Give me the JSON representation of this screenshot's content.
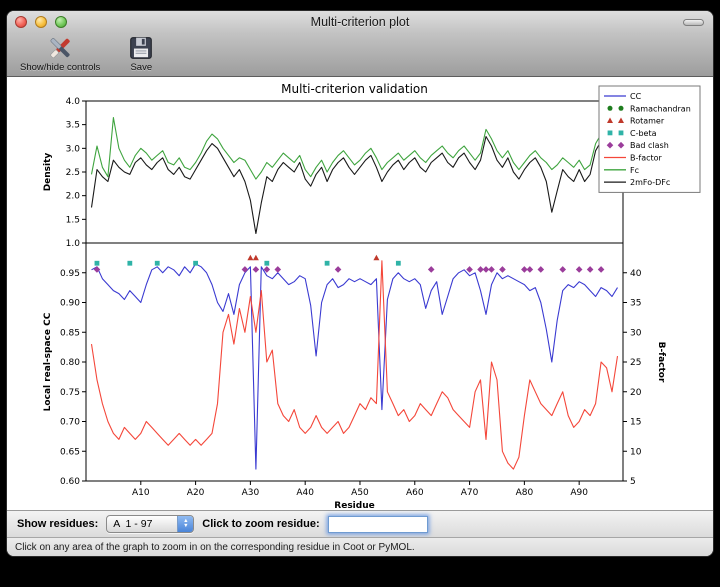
{
  "window": {
    "title": "Multi-criterion plot"
  },
  "toolbar": {
    "buttons": [
      {
        "label": "Show/hide controls",
        "icon": "tools-icon"
      },
      {
        "label": "Save",
        "icon": "floppy-icon"
      }
    ]
  },
  "controls": {
    "show_residues_label": "Show residues:",
    "residue_range_value": "A  1 - 97",
    "zoom_label": "Click to zoom residue:",
    "zoom_input_value": ""
  },
  "status_bar": {
    "text": "Click on any area of the graph to zoom in on the corresponding residue in Coot or PyMOL."
  },
  "chart_data": {
    "type": "line",
    "title": "Multi-criterion validation",
    "xlabel": "Residue",
    "xlim": [
      0,
      98
    ],
    "x_tick_values": [
      10,
      20,
      30,
      40,
      50,
      60,
      70,
      80,
      90
    ],
    "x_tick_labels": [
      "A10",
      "A20",
      "A30",
      "A40",
      "A50",
      "A60",
      "A70",
      "A80",
      "A90"
    ],
    "top_plot": {
      "ylabel": "Density",
      "ylim": [
        1.0,
        4.0
      ],
      "tick_values": [
        1.0,
        1.5,
        2.0,
        2.5,
        3.0,
        3.5,
        4.0
      ],
      "tick_labels": [
        "1.0",
        "1.5",
        "2.0",
        "2.5",
        "3.0",
        "3.5",
        "4.0"
      ],
      "series": [
        {
          "name": "Fc",
          "color": "#3fa43f",
          "values": [
            2.45,
            3.05,
            2.6,
            2.4,
            3.65,
            3.0,
            2.75,
            2.6,
            2.85,
            3.0,
            2.9,
            2.75,
            2.85,
            2.95,
            2.7,
            2.65,
            2.8,
            2.6,
            2.55,
            2.7,
            2.9,
            3.15,
            3.3,
            3.2,
            3.0,
            2.85,
            2.7,
            2.8,
            2.75,
            2.55,
            2.35,
            2.5,
            2.7,
            2.6,
            2.75,
            2.9,
            2.8,
            2.7,
            2.85,
            2.55,
            2.4,
            2.6,
            2.75,
            2.5,
            2.7,
            2.85,
            2.95,
            2.8,
            2.65,
            2.75,
            2.9,
            3.0,
            2.8,
            2.55,
            2.7,
            2.8,
            2.9,
            2.75,
            2.85,
            2.95,
            2.8,
            2.7,
            2.85,
            2.95,
            3.05,
            2.9,
            2.8,
            2.95,
            3.05,
            2.9,
            2.75,
            2.9,
            3.4,
            3.2,
            2.95,
            2.8,
            2.95,
            2.7,
            2.55,
            2.7,
            2.85,
            2.95,
            2.8,
            2.7,
            2.55,
            2.65,
            2.8,
            2.7,
            2.6,
            2.75,
            2.55,
            2.65,
            3.1,
            3.3,
            2.9,
            3.45,
            3.2
          ]
        },
        {
          "name": "2mFo-DFc",
          "color": "#1a1a1a",
          "values": [
            1.75,
            2.55,
            2.4,
            2.3,
            2.75,
            2.6,
            2.5,
            2.45,
            2.7,
            2.8,
            2.65,
            2.55,
            2.7,
            2.8,
            2.55,
            2.45,
            2.6,
            2.4,
            2.35,
            2.55,
            2.75,
            2.95,
            3.1,
            3.0,
            2.8,
            2.6,
            2.4,
            2.55,
            2.3,
            1.9,
            1.2,
            1.85,
            2.4,
            2.3,
            2.55,
            2.7,
            2.6,
            2.5,
            2.7,
            2.35,
            2.2,
            2.45,
            2.6,
            2.3,
            2.55,
            2.7,
            2.8,
            2.6,
            2.45,
            2.6,
            2.75,
            2.85,
            2.6,
            2.3,
            2.5,
            2.65,
            2.75,
            2.55,
            2.7,
            2.8,
            2.6,
            2.5,
            2.7,
            2.8,
            2.9,
            2.7,
            2.6,
            2.8,
            2.9,
            2.7,
            2.55,
            2.75,
            3.25,
            3.05,
            2.75,
            2.6,
            2.8,
            2.5,
            2.35,
            2.55,
            2.7,
            2.8,
            2.6,
            2.3,
            1.65,
            2.1,
            2.55,
            2.4,
            2.3,
            2.55,
            2.3,
            2.45,
            2.95,
            3.15,
            2.7,
            3.3,
            3.05
          ]
        }
      ]
    },
    "bottom_plot": {
      "ylabel_left": "Local real-space CC",
      "ylim_left": [
        0.6,
        1.0
      ],
      "tick_values_left": [
        0.6,
        0.65,
        0.7,
        0.75,
        0.8,
        0.85,
        0.9,
        0.95
      ],
      "tick_labels_left": [
        "0.60",
        "0.65",
        "0.70",
        "0.75",
        "0.80",
        "0.85",
        "0.90",
        "0.95"
      ],
      "ylabel_right": "B-factor",
      "ylim_right": [
        5,
        45
      ],
      "tick_values_right": [
        5,
        10,
        15,
        20,
        25,
        30,
        35,
        40
      ],
      "tick_labels_right": [
        "5",
        "10",
        "15",
        "20",
        "25",
        "30",
        "35",
        "40"
      ],
      "series": [
        {
          "name": "CC",
          "axis": "left",
          "color": "#3a3ad1",
          "values": [
            0.955,
            0.96,
            0.94,
            0.93,
            0.92,
            0.915,
            0.905,
            0.92,
            0.91,
            0.9,
            0.93,
            0.955,
            0.96,
            0.95,
            0.96,
            0.955,
            0.945,
            0.96,
            0.95,
            0.965,
            0.96,
            0.95,
            0.93,
            0.9,
            0.885,
            0.915,
            0.88,
            0.93,
            0.95,
            0.96,
            0.62,
            0.96,
            0.945,
            0.94,
            0.95,
            0.94,
            0.93,
            0.935,
            0.945,
            0.94,
            0.895,
            0.81,
            0.9,
            0.93,
            0.94,
            0.925,
            0.93,
            0.94,
            0.935,
            0.94,
            0.935,
            0.93,
            0.94,
            0.72,
            0.905,
            0.94,
            0.95,
            0.94,
            0.935,
            0.94,
            0.93,
            0.89,
            0.92,
            0.935,
            0.88,
            0.91,
            0.94,
            0.95,
            0.955,
            0.945,
            0.95,
            0.92,
            0.88,
            0.93,
            0.95,
            0.94,
            0.945,
            0.94,
            0.935,
            0.93,
            0.92,
            0.925,
            0.9,
            0.855,
            0.8,
            0.87,
            0.92,
            0.93,
            0.925,
            0.935,
            0.93,
            0.92,
            0.91,
            0.925,
            0.92,
            0.91,
            0.925
          ]
        },
        {
          "name": "B-factor",
          "axis": "right",
          "color": "#f4473a",
          "values": [
            28,
            22,
            18,
            15,
            13,
            12,
            14,
            13,
            12,
            13,
            15,
            14,
            13,
            12,
            11,
            12,
            13,
            12,
            11,
            12,
            11,
            12,
            13,
            18,
            30,
            33,
            28,
            34,
            30,
            36,
            30,
            37,
            25,
            27,
            18,
            16,
            15,
            17,
            14,
            13,
            14,
            16,
            14,
            13,
            14,
            15,
            13,
            14,
            16,
            18,
            17,
            19,
            18,
            42,
            20,
            18,
            16,
            17,
            15,
            16,
            18,
            17,
            16,
            18,
            20,
            19,
            17,
            16,
            15,
            14,
            20,
            22,
            12,
            25,
            22,
            10,
            8,
            7,
            9,
            16,
            22,
            20,
            18,
            17,
            16,
            18,
            20,
            16,
            14,
            15,
            17,
            16,
            18,
            25,
            24,
            20,
            26
          ]
        }
      ],
      "markers": {
        "rotamer": {
          "shape": "triangle",
          "color": "#c0392b",
          "row_y": 0.975,
          "positions": [
            30,
            31,
            53
          ]
        },
        "cbeta": {
          "shape": "square",
          "color": "#2fb3a7",
          "row_y": 0.966,
          "positions": [
            2,
            8,
            13,
            20,
            33,
            44,
            57
          ]
        },
        "bad_clash": {
          "shape": "diamond",
          "color": "#9b3d9b",
          "row_y": 0.9555,
          "positions": [
            2,
            29,
            31,
            33,
            35,
            46,
            63,
            70,
            72,
            73,
            74,
            76,
            80,
            81,
            83,
            87,
            90,
            92,
            94
          ]
        },
        "ramachandran": {
          "shape": "circle",
          "color": "#1e7d1e",
          "row_y": 0.975,
          "positions": []
        }
      }
    },
    "legend": [
      {
        "label": "CC",
        "type": "line",
        "color": "#3a3ad1"
      },
      {
        "label": "Ramachandran",
        "type": "circle",
        "color": "#1e7d1e"
      },
      {
        "label": "Rotamer",
        "type": "triangle",
        "color": "#c0392b"
      },
      {
        "label": "C-beta",
        "type": "square",
        "color": "#2fb3a7"
      },
      {
        "label": "Bad clash",
        "type": "diamond",
        "color": "#9b3d9b"
      },
      {
        "label": "B-factor",
        "type": "line",
        "color": "#f4473a"
      },
      {
        "label": "Fc",
        "type": "line",
        "color": "#3fa43f"
      },
      {
        "label": "2mFo-DFc",
        "type": "line",
        "color": "#1a1a1a"
      }
    ]
  }
}
